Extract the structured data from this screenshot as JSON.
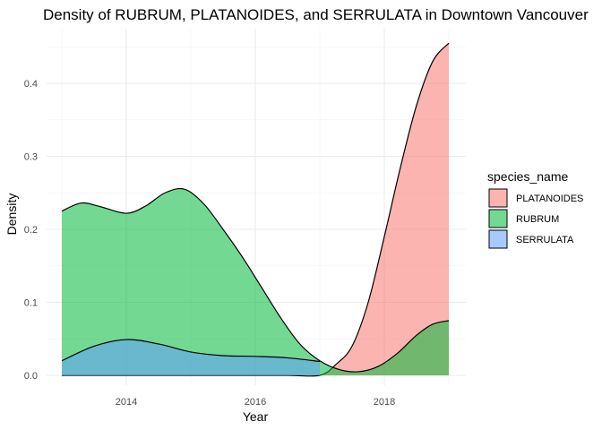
{
  "chart_data": {
    "type": "area",
    "title": "Density of RUBRUM, PLATANOIDES, and SERRULATA in Downtown Vancouver",
    "xlabel": "Year",
    "ylabel": "Density",
    "xlim": [
      2013,
      2019
    ],
    "ylim": [
      0,
      0.45
    ],
    "x_ticks": [
      2014,
      2016,
      2018
    ],
    "y_ticks": [
      0.0,
      0.1,
      0.2,
      0.3,
      0.4
    ],
    "x_tick_labels": [
      "2014",
      "2016",
      "2018"
    ],
    "y_tick_labels": [
      "0.0",
      "0.1",
      "0.2",
      "0.3",
      "0.4"
    ],
    "grid": true,
    "legend": {
      "title": "species_name",
      "position": "right"
    },
    "series": [
      {
        "name": "PLATANOIDES",
        "color": "#F8766D",
        "x": [
          2013.0,
          2013.5,
          2014.0,
          2014.5,
          2015.0,
          2015.5,
          2016.0,
          2016.5,
          2017.0,
          2017.25,
          2017.5,
          2017.75,
          2018.0,
          2018.25,
          2018.5,
          2018.75,
          2019.0
        ],
        "values": [
          0.0,
          0.0,
          0.0,
          0.0,
          0.0,
          0.0,
          0.0,
          0.0,
          0.0,
          0.015,
          0.04,
          0.1,
          0.19,
          0.285,
          0.37,
          0.43,
          0.455
        ]
      },
      {
        "name": "RUBRUM",
        "color": "#00BA38",
        "x": [
          2013.0,
          2013.3,
          2013.6,
          2014.0,
          2014.3,
          2014.6,
          2014.9,
          2015.2,
          2015.5,
          2015.8,
          2016.1,
          2016.4,
          2016.7,
          2017.0,
          2017.3,
          2017.6,
          2017.9,
          2018.2,
          2018.5,
          2018.75,
          2019.0
        ],
        "values": [
          0.225,
          0.236,
          0.231,
          0.222,
          0.232,
          0.25,
          0.255,
          0.235,
          0.2,
          0.162,
          0.12,
          0.078,
          0.042,
          0.02,
          0.008,
          0.005,
          0.012,
          0.03,
          0.055,
          0.07,
          0.075
        ]
      },
      {
        "name": "SERRULATA",
        "color": "#619CFF",
        "x": [
          2013.0,
          2013.5,
          2014.0,
          2014.5,
          2015.0,
          2015.5,
          2016.0,
          2016.5,
          2017.0
        ],
        "values": [
          0.02,
          0.04,
          0.049,
          0.043,
          0.032,
          0.027,
          0.026,
          0.024,
          0.019
        ]
      }
    ]
  }
}
